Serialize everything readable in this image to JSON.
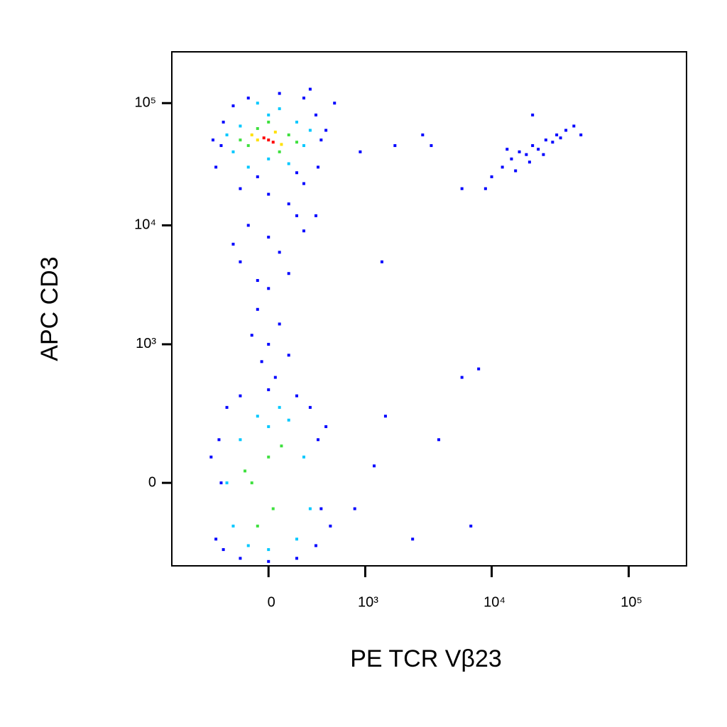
{
  "chart_data": {
    "type": "scatter",
    "x_label": "PE TCR Vβ23",
    "y_label": "APC CD3",
    "xscale": "biexponential",
    "yscale": "biexponential",
    "xlim": [
      -1000,
      262144
    ],
    "ylim": [
      -300,
      262144
    ],
    "xticks": [
      0,
      {
        "value": 1000,
        "label": "10³"
      },
      {
        "value": 10000,
        "label": "10⁴"
      },
      {
        "value": 100000,
        "label": "10⁵"
      }
    ],
    "yticks": [
      0,
      {
        "value": 1000,
        "label": "10³"
      },
      {
        "value": 10000,
        "label": "10⁴"
      },
      {
        "value": 100000,
        "label": "10⁵"
      }
    ],
    "series": [
      {
        "color": "#0000ff",
        "x": [
          -350,
          -280,
          -200,
          -100,
          50,
          200,
          300,
          350,
          320,
          200,
          0,
          -150,
          -300,
          -380,
          400,
          500,
          250,
          -50,
          150,
          100,
          -100,
          0,
          50,
          -150,
          100,
          0,
          -50,
          50,
          0,
          -30,
          30,
          100,
          -80,
          200,
          150,
          -200,
          300,
          -50,
          -350,
          -300,
          -320,
          -250,
          -150,
          0,
          150,
          250,
          320,
          350,
          300,
          150,
          0,
          -150,
          -280,
          400,
          -400,
          450,
          800,
          1500,
          1200,
          2500,
          4000,
          7000,
          6000,
          8000,
          900,
          1800,
          3000,
          3500,
          6000,
          1400,
          10000,
          12000,
          14000,
          16000,
          18000,
          20000,
          22000,
          25000,
          28000,
          30000,
          35000,
          40000,
          15000,
          19000,
          24000,
          13000,
          32000,
          45000,
          9000,
          20000
        ],
        "values": [
          30000,
          70000,
          95000,
          110000,
          120000,
          110000,
          80000,
          50000,
          30000,
          22000,
          18000,
          20000,
          45000,
          50000,
          60000,
          100000,
          130000,
          25000,
          27000,
          15000,
          10000,
          8000,
          6000,
          5000,
          4000,
          3000,
          2000,
          1500,
          1000,
          700,
          500,
          800,
          1200,
          9000,
          12000,
          7000,
          12000,
          3500,
          -150,
          0,
          100,
          250,
          330,
          380,
          330,
          250,
          100,
          -50,
          -180,
          -250,
          -270,
          -250,
          -200,
          150,
          50,
          -100,
          -50,
          200,
          30,
          -150,
          100,
          -100,
          500,
          600,
          40000,
          45000,
          55000,
          45000,
          20000,
          5000,
          25000,
          30000,
          35000,
          40000,
          38000,
          45000,
          42000,
          50000,
          48000,
          55000,
          60000,
          65000,
          28000,
          33000,
          38000,
          42000,
          52000,
          55000,
          20000,
          80000
        ]
      },
      {
        "color": "#00c8ff",
        "x": [
          -200,
          -150,
          0,
          150,
          200,
          100,
          -100,
          -250,
          250,
          0,
          50,
          -50,
          -200,
          -150,
          -50,
          100,
          200,
          150,
          0,
          -100,
          250,
          -250,
          50,
          0
        ],
        "values": [
          40000,
          65000,
          80000,
          70000,
          45000,
          32000,
          30000,
          55000,
          60000,
          35000,
          90000,
          100000,
          -100,
          100,
          200,
          180,
          50,
          -150,
          -200,
          -180,
          -50,
          0,
          250,
          150
        ]
      },
      {
        "color": "#3ee03e",
        "x": [
          -100,
          100,
          -50,
          50,
          0,
          -150,
          150,
          -80,
          20,
          0,
          -50,
          60,
          -120
        ],
        "values": [
          45000,
          55000,
          62000,
          40000,
          70000,
          50000,
          48000,
          0,
          -50,
          50,
          -100,
          80,
          20
        ]
      },
      {
        "color": "#ffe000",
        "x": [
          -50,
          30,
          60,
          -80
        ],
        "values": [
          50000,
          58000,
          46000,
          55000
        ]
      },
      {
        "color": "#ff0000",
        "x": [
          0,
          -20,
          20
        ],
        "values": [
          50000,
          52000,
          48000
        ]
      }
    ]
  }
}
